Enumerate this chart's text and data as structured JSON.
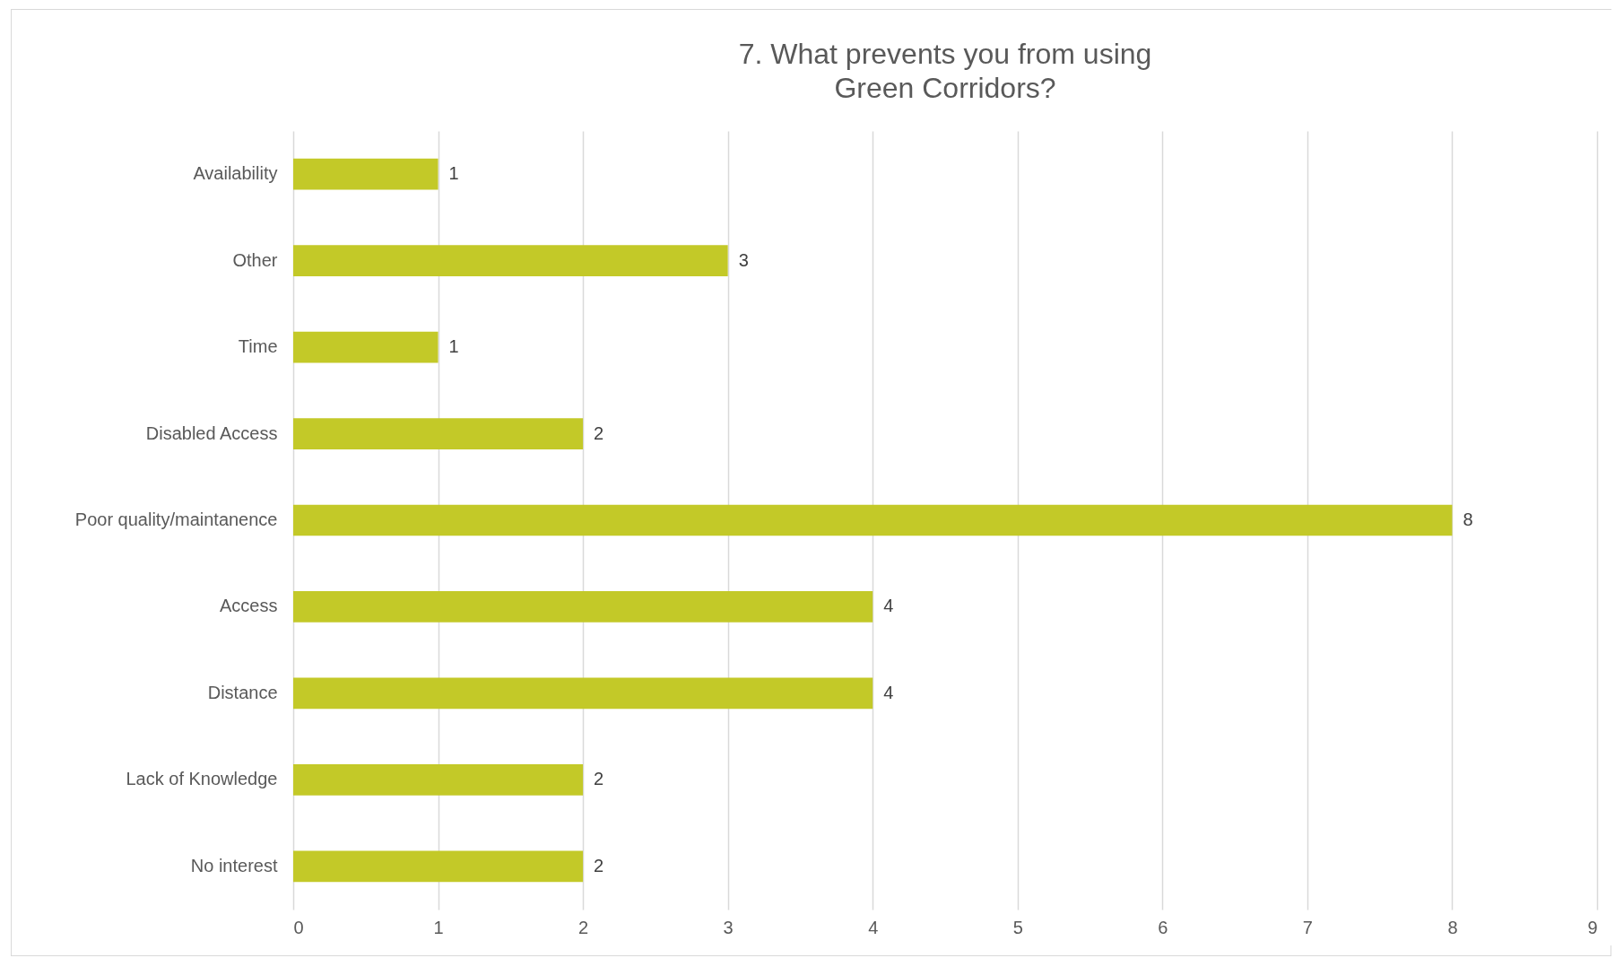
{
  "chart_data": {
    "type": "bar",
    "orientation": "horizontal",
    "title": "7. What prevents you from using\nGreen Corridors?",
    "categories": [
      "Availability",
      "Other",
      "Time",
      "Disabled Access",
      "Poor quality/maintanence",
      "Access",
      "Distance",
      "Lack of Knowledge",
      "No interest"
    ],
    "values": [
      1,
      3,
      1,
      2,
      8,
      4,
      4,
      2,
      2
    ],
    "color": "#c3c928",
    "xlim": [
      0,
      9
    ],
    "xticks": [
      0,
      1,
      2,
      3,
      4,
      5,
      6,
      7,
      8,
      9
    ],
    "grid": "x",
    "data_labels": true
  }
}
